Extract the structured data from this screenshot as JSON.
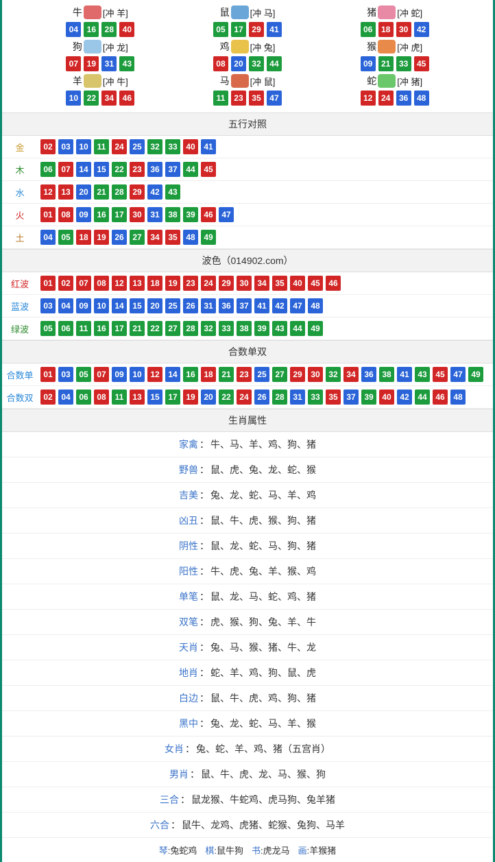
{
  "colors": {
    "red": "#d22626",
    "blue": "#2a64d8",
    "green": "#1c9c3c",
    "border": "#0a8a6e",
    "header_bg": "#f2f2f2",
    "gold": "#c99a2e",
    "wood": "#2e8b2e",
    "water": "#2a88d8",
    "fire": "#d22626",
    "earth": "#b97a2a",
    "link_blue": "#3a73c9"
  },
  "zodiac_icons": {
    "牛": "#e06a6a",
    "鼠": "#6aa6d8",
    "猪": "#e88aa6",
    "狗": "#9ac6e8",
    "鸡": "#e8c24a",
    "猴": "#e88a4a",
    "羊": "#d8c46a",
    "马": "#d86a4a",
    "蛇": "#6ac86a"
  },
  "zodiac": [
    {
      "name": "牛",
      "chong": "[冲 羊]",
      "balls": [
        {
          "n": "04",
          "c": "blue"
        },
        {
          "n": "16",
          "c": "green"
        },
        {
          "n": "28",
          "c": "green"
        },
        {
          "n": "40",
          "c": "red"
        }
      ]
    },
    {
      "name": "鼠",
      "chong": "[冲 马]",
      "balls": [
        {
          "n": "05",
          "c": "green"
        },
        {
          "n": "17",
          "c": "green"
        },
        {
          "n": "29",
          "c": "red"
        },
        {
          "n": "41",
          "c": "blue"
        }
      ]
    },
    {
      "name": "猪",
      "chong": "[冲 蛇]",
      "balls": [
        {
          "n": "06",
          "c": "green"
        },
        {
          "n": "18",
          "c": "red"
        },
        {
          "n": "30",
          "c": "red"
        },
        {
          "n": "42",
          "c": "blue"
        }
      ]
    },
    {
      "name": "狗",
      "chong": "[冲 龙]",
      "balls": [
        {
          "n": "07",
          "c": "red"
        },
        {
          "n": "19",
          "c": "red"
        },
        {
          "n": "31",
          "c": "blue"
        },
        {
          "n": "43",
          "c": "green"
        }
      ]
    },
    {
      "name": "鸡",
      "chong": "[冲 兔]",
      "balls": [
        {
          "n": "08",
          "c": "red"
        },
        {
          "n": "20",
          "c": "blue"
        },
        {
          "n": "32",
          "c": "green"
        },
        {
          "n": "44",
          "c": "green"
        }
      ]
    },
    {
      "name": "猴",
      "chong": "[冲 虎]",
      "balls": [
        {
          "n": "09",
          "c": "blue"
        },
        {
          "n": "21",
          "c": "green"
        },
        {
          "n": "33",
          "c": "green"
        },
        {
          "n": "45",
          "c": "red"
        }
      ]
    },
    {
      "name": "羊",
      "chong": "[冲 牛]",
      "balls": [
        {
          "n": "10",
          "c": "blue"
        },
        {
          "n": "22",
          "c": "green"
        },
        {
          "n": "34",
          "c": "red"
        },
        {
          "n": "46",
          "c": "red"
        }
      ]
    },
    {
      "name": "马",
      "chong": "[冲 鼠]",
      "balls": [
        {
          "n": "11",
          "c": "green"
        },
        {
          "n": "23",
          "c": "red"
        },
        {
          "n": "35",
          "c": "red"
        },
        {
          "n": "47",
          "c": "blue"
        }
      ]
    },
    {
      "name": "蛇",
      "chong": "[冲 猪]",
      "balls": [
        {
          "n": "12",
          "c": "red"
        },
        {
          "n": "24",
          "c": "red"
        },
        {
          "n": "36",
          "c": "blue"
        },
        {
          "n": "48",
          "c": "blue"
        }
      ]
    }
  ],
  "sections": {
    "wuxing_title": "五行对照",
    "bose_title": "波色（014902.com）",
    "heshu_title": "合数单双",
    "shengxiao_title": "生肖属性"
  },
  "wuxing": [
    {
      "label": "金",
      "color_key": "gold",
      "balls": [
        {
          "n": "02",
          "c": "red"
        },
        {
          "n": "03",
          "c": "blue"
        },
        {
          "n": "10",
          "c": "blue"
        },
        {
          "n": "11",
          "c": "green"
        },
        {
          "n": "24",
          "c": "red"
        },
        {
          "n": "25",
          "c": "blue"
        },
        {
          "n": "32",
          "c": "green"
        },
        {
          "n": "33",
          "c": "green"
        },
        {
          "n": "40",
          "c": "red"
        },
        {
          "n": "41",
          "c": "blue"
        }
      ]
    },
    {
      "label": "木",
      "color_key": "wood",
      "balls": [
        {
          "n": "06",
          "c": "green"
        },
        {
          "n": "07",
          "c": "red"
        },
        {
          "n": "14",
          "c": "blue"
        },
        {
          "n": "15",
          "c": "blue"
        },
        {
          "n": "22",
          "c": "green"
        },
        {
          "n": "23",
          "c": "red"
        },
        {
          "n": "36",
          "c": "blue"
        },
        {
          "n": "37",
          "c": "blue"
        },
        {
          "n": "44",
          "c": "green"
        },
        {
          "n": "45",
          "c": "red"
        }
      ]
    },
    {
      "label": "水",
      "color_key": "water",
      "balls": [
        {
          "n": "12",
          "c": "red"
        },
        {
          "n": "13",
          "c": "red"
        },
        {
          "n": "20",
          "c": "blue"
        },
        {
          "n": "21",
          "c": "green"
        },
        {
          "n": "28",
          "c": "green"
        },
        {
          "n": "29",
          "c": "red"
        },
        {
          "n": "42",
          "c": "blue"
        },
        {
          "n": "43",
          "c": "green"
        }
      ]
    },
    {
      "label": "火",
      "color_key": "fire",
      "balls": [
        {
          "n": "01",
          "c": "red"
        },
        {
          "n": "08",
          "c": "red"
        },
        {
          "n": "09",
          "c": "blue"
        },
        {
          "n": "16",
          "c": "green"
        },
        {
          "n": "17",
          "c": "green"
        },
        {
          "n": "30",
          "c": "red"
        },
        {
          "n": "31",
          "c": "blue"
        },
        {
          "n": "38",
          "c": "green"
        },
        {
          "n": "39",
          "c": "green"
        },
        {
          "n": "46",
          "c": "red"
        },
        {
          "n": "47",
          "c": "blue"
        }
      ]
    },
    {
      "label": "土",
      "color_key": "earth",
      "balls": [
        {
          "n": "04",
          "c": "blue"
        },
        {
          "n": "05",
          "c": "green"
        },
        {
          "n": "18",
          "c": "red"
        },
        {
          "n": "19",
          "c": "red"
        },
        {
          "n": "26",
          "c": "blue"
        },
        {
          "n": "27",
          "c": "green"
        },
        {
          "n": "34",
          "c": "red"
        },
        {
          "n": "35",
          "c": "red"
        },
        {
          "n": "48",
          "c": "blue"
        },
        {
          "n": "49",
          "c": "green"
        }
      ]
    }
  ],
  "bose": [
    {
      "label": "红波",
      "color_key": "red",
      "balls": [
        {
          "n": "01",
          "c": "red"
        },
        {
          "n": "02",
          "c": "red"
        },
        {
          "n": "07",
          "c": "red"
        },
        {
          "n": "08",
          "c": "red"
        },
        {
          "n": "12",
          "c": "red"
        },
        {
          "n": "13",
          "c": "red"
        },
        {
          "n": "18",
          "c": "red"
        },
        {
          "n": "19",
          "c": "red"
        },
        {
          "n": "23",
          "c": "red"
        },
        {
          "n": "24",
          "c": "red"
        },
        {
          "n": "29",
          "c": "red"
        },
        {
          "n": "30",
          "c": "red"
        },
        {
          "n": "34",
          "c": "red"
        },
        {
          "n": "35",
          "c": "red"
        },
        {
          "n": "40",
          "c": "red"
        },
        {
          "n": "45",
          "c": "red"
        },
        {
          "n": "46",
          "c": "red"
        }
      ]
    },
    {
      "label": "蓝波",
      "color_key": "water",
      "balls": [
        {
          "n": "03",
          "c": "blue"
        },
        {
          "n": "04",
          "c": "blue"
        },
        {
          "n": "09",
          "c": "blue"
        },
        {
          "n": "10",
          "c": "blue"
        },
        {
          "n": "14",
          "c": "blue"
        },
        {
          "n": "15",
          "c": "blue"
        },
        {
          "n": "20",
          "c": "blue"
        },
        {
          "n": "25",
          "c": "blue"
        },
        {
          "n": "26",
          "c": "blue"
        },
        {
          "n": "31",
          "c": "blue"
        },
        {
          "n": "36",
          "c": "blue"
        },
        {
          "n": "37",
          "c": "blue"
        },
        {
          "n": "41",
          "c": "blue"
        },
        {
          "n": "42",
          "c": "blue"
        },
        {
          "n": "47",
          "c": "blue"
        },
        {
          "n": "48",
          "c": "blue"
        }
      ]
    },
    {
      "label": "绿波",
      "color_key": "wood",
      "balls": [
        {
          "n": "05",
          "c": "green"
        },
        {
          "n": "06",
          "c": "green"
        },
        {
          "n": "11",
          "c": "green"
        },
        {
          "n": "16",
          "c": "green"
        },
        {
          "n": "17",
          "c": "green"
        },
        {
          "n": "21",
          "c": "green"
        },
        {
          "n": "22",
          "c": "green"
        },
        {
          "n": "27",
          "c": "green"
        },
        {
          "n": "28",
          "c": "green"
        },
        {
          "n": "32",
          "c": "green"
        },
        {
          "n": "33",
          "c": "green"
        },
        {
          "n": "38",
          "c": "green"
        },
        {
          "n": "39",
          "c": "green"
        },
        {
          "n": "43",
          "c": "green"
        },
        {
          "n": "44",
          "c": "green"
        },
        {
          "n": "49",
          "c": "green"
        }
      ]
    }
  ],
  "heshu": [
    {
      "label": "合数单",
      "color_key": "water",
      "balls": [
        {
          "n": "01",
          "c": "red"
        },
        {
          "n": "03",
          "c": "blue"
        },
        {
          "n": "05",
          "c": "green"
        },
        {
          "n": "07",
          "c": "red"
        },
        {
          "n": "09",
          "c": "blue"
        },
        {
          "n": "10",
          "c": "blue"
        },
        {
          "n": "12",
          "c": "red"
        },
        {
          "n": "14",
          "c": "blue"
        },
        {
          "n": "16",
          "c": "green"
        },
        {
          "n": "18",
          "c": "red"
        },
        {
          "n": "21",
          "c": "green"
        },
        {
          "n": "23",
          "c": "red"
        },
        {
          "n": "25",
          "c": "blue"
        },
        {
          "n": "27",
          "c": "green"
        },
        {
          "n": "29",
          "c": "red"
        },
        {
          "n": "30",
          "c": "red"
        },
        {
          "n": "32",
          "c": "green"
        },
        {
          "n": "34",
          "c": "red"
        },
        {
          "n": "36",
          "c": "blue"
        },
        {
          "n": "38",
          "c": "green"
        },
        {
          "n": "41",
          "c": "blue"
        },
        {
          "n": "43",
          "c": "green"
        },
        {
          "n": "45",
          "c": "red"
        },
        {
          "n": "47",
          "c": "blue"
        },
        {
          "n": "49",
          "c": "green"
        }
      ]
    },
    {
      "label": "合数双",
      "color_key": "water",
      "balls": [
        {
          "n": "02",
          "c": "red"
        },
        {
          "n": "04",
          "c": "blue"
        },
        {
          "n": "06",
          "c": "green"
        },
        {
          "n": "08",
          "c": "red"
        },
        {
          "n": "11",
          "c": "green"
        },
        {
          "n": "13",
          "c": "red"
        },
        {
          "n": "15",
          "c": "blue"
        },
        {
          "n": "17",
          "c": "green"
        },
        {
          "n": "19",
          "c": "red"
        },
        {
          "n": "20",
          "c": "blue"
        },
        {
          "n": "22",
          "c": "green"
        },
        {
          "n": "24",
          "c": "red"
        },
        {
          "n": "26",
          "c": "blue"
        },
        {
          "n": "28",
          "c": "green"
        },
        {
          "n": "31",
          "c": "blue"
        },
        {
          "n": "33",
          "c": "green"
        },
        {
          "n": "35",
          "c": "red"
        },
        {
          "n": "37",
          "c": "blue"
        },
        {
          "n": "39",
          "c": "green"
        },
        {
          "n": "40",
          "c": "red"
        },
        {
          "n": "42",
          "c": "blue"
        },
        {
          "n": "44",
          "c": "green"
        },
        {
          "n": "46",
          "c": "red"
        },
        {
          "n": "48",
          "c": "blue"
        }
      ]
    }
  ],
  "attrs": [
    {
      "key": "家禽",
      "val": "牛、马、羊、鸡、狗、猪"
    },
    {
      "key": "野兽",
      "val": "鼠、虎、兔、龙、蛇、猴"
    },
    {
      "key": "吉美",
      "val": "兔、龙、蛇、马、羊、鸡"
    },
    {
      "key": "凶丑",
      "val": "鼠、牛、虎、猴、狗、猪"
    },
    {
      "key": "阴性",
      "val": "鼠、龙、蛇、马、狗、猪"
    },
    {
      "key": "阳性",
      "val": "牛、虎、兔、羊、猴、鸡"
    },
    {
      "key": "单笔",
      "val": "鼠、龙、马、蛇、鸡、猪"
    },
    {
      "key": "双笔",
      "val": "虎、猴、狗、兔、羊、牛"
    },
    {
      "key": "天肖",
      "val": "兔、马、猴、猪、牛、龙"
    },
    {
      "key": "地肖",
      "val": "蛇、羊、鸡、狗、鼠、虎"
    },
    {
      "key": "白边",
      "val": "鼠、牛、虎、鸡、狗、猪"
    },
    {
      "key": "黑中",
      "val": "兔、龙、蛇、马、羊、猴"
    },
    {
      "key": "女肖",
      "val": "兔、蛇、羊、鸡、猪（五宫肖）"
    },
    {
      "key": "男肖",
      "val": "鼠、牛、虎、龙、马、猴、狗"
    },
    {
      "key": "三合",
      "val": "鼠龙猴、牛蛇鸡、虎马狗、兔羊猪"
    },
    {
      "key": "六合",
      "val": "鼠牛、龙鸡、虎猪、蛇猴、兔狗、马羊"
    }
  ],
  "bottom": [
    {
      "key": "琴",
      "val": "兔蛇鸡"
    },
    {
      "key": "棋",
      "val": "鼠牛狗"
    },
    {
      "key": "书",
      "val": "虎龙马"
    },
    {
      "key": "画",
      "val": "羊猴猪"
    }
  ]
}
